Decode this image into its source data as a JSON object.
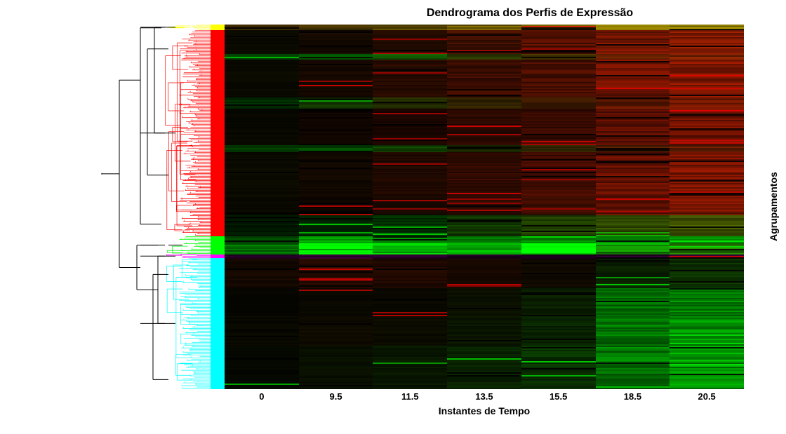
{
  "title": "Dendrograma dos Perfis de Expressão",
  "xlabel": "Instantes de Tempo",
  "ylabel": "Agrupamentos",
  "title_fontsize": 16,
  "label_fontsize": 14,
  "tick_fontsize": 13,
  "background_color": "#ffffff",
  "heatmap_bg": "#000000",
  "xticks": [
    "0",
    "9.5",
    "11.5",
    "13.5",
    "15.5",
    "18.5",
    "20.5"
  ],
  "clusters": [
    {
      "color": "#ffff00",
      "start": 0.0,
      "end": 0.015
    },
    {
      "color": "#ff0000",
      "start": 0.015,
      "end": 0.58
    },
    {
      "color": "#00ff00",
      "start": 0.58,
      "end": 0.63
    },
    {
      "color": "#ff00ff",
      "start": 0.63,
      "end": 0.64
    },
    {
      "color": "#00ffff",
      "start": 0.64,
      "end": 1.0
    }
  ],
  "heatmap_columns": 7,
  "heatmap_region_rows": [
    {
      "y0": 0.0,
      "y1": 0.015,
      "cols": [
        "#332200",
        "#443300",
        "#554400",
        "#665500",
        "#776600",
        "#887700",
        "#998800"
      ]
    },
    {
      "y0": 0.015,
      "y1": 0.08,
      "cols": [
        "#0a0a00",
        "#150a00",
        "#200a00",
        "#401000",
        "#551000",
        "#701500",
        "#801a00"
      ]
    },
    {
      "y0": 0.08,
      "y1": 0.095,
      "cols": [
        "#004400",
        "#006600",
        "#105500",
        "#304000",
        "#403000",
        "#602000",
        "#702000"
      ]
    },
    {
      "y0": 0.095,
      "y1": 0.2,
      "cols": [
        "#0a0a00",
        "#150800",
        "#250a00",
        "#3a0c00",
        "#4a0e00",
        "#6a1200",
        "#7e1600"
      ]
    },
    {
      "y0": 0.2,
      "y1": 0.23,
      "cols": [
        "#002800",
        "#103000",
        "#202800",
        "#302200",
        "#401c00",
        "#601800",
        "#701800"
      ]
    },
    {
      "y0": 0.23,
      "y1": 0.33,
      "cols": [
        "#080800",
        "#100600",
        "#1a0600",
        "#280800",
        "#380a00",
        "#580e00",
        "#6c1200"
      ]
    },
    {
      "y0": 0.33,
      "y1": 0.35,
      "cols": [
        "#003c00",
        "#004800",
        "#104000",
        "#203200",
        "#302600",
        "#501e00",
        "#601c00"
      ]
    },
    {
      "y0": 0.35,
      "y1": 0.47,
      "cols": [
        "#0a0a00",
        "#120800",
        "#1e0800",
        "#300a00",
        "#420c00",
        "#641000",
        "#781400"
      ]
    },
    {
      "y0": 0.47,
      "y1": 0.52,
      "cols": [
        "#080800",
        "#0e0600",
        "#180800",
        "#280a00",
        "#3a0c00",
        "#5e1000",
        "#741400"
      ]
    },
    {
      "y0": 0.52,
      "y1": 0.58,
      "cols": [
        "#001800",
        "#002400",
        "#003000",
        "#103800",
        "#204000",
        "#304a00",
        "#405200"
      ]
    },
    {
      "y0": 0.58,
      "y1": 0.6,
      "cols": [
        "#004400",
        "#00a000",
        "#008800",
        "#006a00",
        "#007800",
        "#00a000",
        "#00b000"
      ]
    },
    {
      "y0": 0.6,
      "y1": 0.63,
      "cols": [
        "#006600",
        "#00e000",
        "#00c000",
        "#00a000",
        "#00ff00",
        "#108800",
        "#207000"
      ]
    },
    {
      "y0": 0.63,
      "y1": 0.64,
      "cols": [
        "#200020",
        "#300030",
        "#280028",
        "#200020",
        "#180018",
        "#280028",
        "#300030"
      ]
    },
    {
      "y0": 0.64,
      "y1": 0.72,
      "cols": [
        "#140800",
        "#240a00",
        "#200800",
        "#180800",
        "#100a00",
        "#0a2000",
        "#0c3000"
      ]
    },
    {
      "y0": 0.72,
      "y1": 0.8,
      "cols": [
        "#060600",
        "#0a0800",
        "#0a0800",
        "#0a1000",
        "#0a2000",
        "#006800",
        "#008000"
      ]
    },
    {
      "y0": 0.8,
      "y1": 0.88,
      "cols": [
        "#080800",
        "#0e0a00",
        "#0c0c00",
        "#0a1400",
        "#082200",
        "#007000",
        "#008c00"
      ]
    },
    {
      "y0": 0.88,
      "y1": 0.94,
      "cols": [
        "#060800",
        "#081000",
        "#081800",
        "#082400",
        "#083200",
        "#007800",
        "#009400"
      ]
    },
    {
      "y0": 0.94,
      "y1": 1.0,
      "cols": [
        "#060800",
        "#080e00",
        "#081600",
        "#082000",
        "#082c00",
        "#006c00",
        "#008a00"
      ]
    }
  ],
  "dendro_color_trunk": "#000000",
  "noise_variation": 0.18
}
